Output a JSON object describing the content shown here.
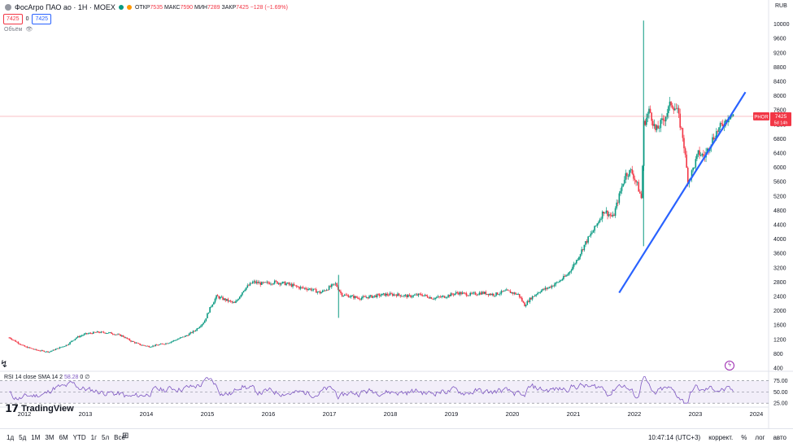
{
  "header": {
    "symbol": "ФосАгро ПАО ао · 1Н · MOEX",
    "open_label": "ОТКР",
    "open": "7535",
    "high_label": "МАКС",
    "high": "7590",
    "low_label": "МИН",
    "low": "7289",
    "close_label": "ЗАКР",
    "close": "7425",
    "change": "−128 (−1.69%)",
    "bid": "7425",
    "spread": "0",
    "ask": "7425",
    "volume_label": "Объём"
  },
  "price_tag": {
    "ticker": "PHOR",
    "price": "7425",
    "countdown": "5d 14h"
  },
  "rsi_header": {
    "label": "RSI 14 close SMA 14 2",
    "value": "58.28",
    "value2": "0 ∅"
  },
  "brand": "TradingView",
  "timeframes": [
    "1д",
    "5д",
    "1М",
    "3М",
    "6М",
    "YTD",
    "1г",
    "5л",
    "Все"
  ],
  "bottom_right": {
    "time": "10:47:14 (UTC+3)",
    "adj": "коррект.",
    "pct": "%",
    "log": "лог",
    "auto": "авто"
  },
  "colors": {
    "up": "#089981",
    "down": "#f23645",
    "trend": "#2962ff",
    "rsi": "#7e57c2",
    "last": "#f23645"
  },
  "chart_data": {
    "type": "candlestick",
    "currency": "RUB",
    "y_ticks": [
      400,
      800,
      1200,
      1600,
      2000,
      2400,
      2800,
      3200,
      3600,
      4000,
      4400,
      4800,
      5200,
      5600,
      6000,
      6400,
      6800,
      7200,
      7600,
      8000,
      8400,
      8800,
      9200,
      9600,
      10000
    ],
    "ylim": [
      400,
      10400
    ],
    "x_ticks": [
      "2012",
      "2013",
      "2014",
      "2015",
      "2016",
      "2017",
      "2018",
      "2019",
      "2020",
      "2021",
      "2022",
      "2023",
      "2024"
    ],
    "xlim": [
      2011.6,
      2024.2
    ],
    "price_path": [
      [
        2011.75,
        1250
      ],
      [
        2011.9,
        1100
      ],
      [
        2012.0,
        1000
      ],
      [
        2012.2,
        900
      ],
      [
        2012.4,
        850
      ],
      [
        2012.55,
        950
      ],
      [
        2012.7,
        1050
      ],
      [
        2012.85,
        1250
      ],
      [
        2013.0,
        1350
      ],
      [
        2013.2,
        1400
      ],
      [
        2013.4,
        1380
      ],
      [
        2013.6,
        1300
      ],
      [
        2013.75,
        1150
      ],
      [
        2013.9,
        1050
      ],
      [
        2014.05,
        1000
      ],
      [
        2014.2,
        1050
      ],
      [
        2014.35,
        1100
      ],
      [
        2014.5,
        1200
      ],
      [
        2014.65,
        1300
      ],
      [
        2014.8,
        1450
      ],
      [
        2014.95,
        1700
      ],
      [
        2015.05,
        2100
      ],
      [
        2015.15,
        2400
      ],
      [
        2015.3,
        2300
      ],
      [
        2015.45,
        2200
      ],
      [
        2015.6,
        2600
      ],
      [
        2015.75,
        2800
      ],
      [
        2015.9,
        2750
      ],
      [
        2016.1,
        2800
      ],
      [
        2016.3,
        2750
      ],
      [
        2016.5,
        2650
      ],
      [
        2016.7,
        2600
      ],
      [
        2016.85,
        2500
      ],
      [
        2017.0,
        2650
      ],
      [
        2017.1,
        2750
      ],
      [
        2017.2,
        2450
      ],
      [
        2017.35,
        2400
      ],
      [
        2017.5,
        2350
      ],
      [
        2017.7,
        2400
      ],
      [
        2017.9,
        2450
      ],
      [
        2018.1,
        2450
      ],
      [
        2018.3,
        2400
      ],
      [
        2018.5,
        2450
      ],
      [
        2018.7,
        2350
      ],
      [
        2018.9,
        2400
      ],
      [
        2019.1,
        2500
      ],
      [
        2019.3,
        2450
      ],
      [
        2019.5,
        2500
      ],
      [
        2019.7,
        2450
      ],
      [
        2019.9,
        2550
      ],
      [
        2020.1,
        2450
      ],
      [
        2020.2,
        2150
      ],
      [
        2020.3,
        2350
      ],
      [
        2020.45,
        2550
      ],
      [
        2020.6,
        2650
      ],
      [
        2020.75,
        2800
      ],
      [
        2020.9,
        3000
      ],
      [
        2021.05,
        3400
      ],
      [
        2021.2,
        3900
      ],
      [
        2021.35,
        4300
      ],
      [
        2021.5,
        4800
      ],
      [
        2021.65,
        4600
      ],
      [
        2021.75,
        5200
      ],
      [
        2021.85,
        5800
      ],
      [
        2021.95,
        5900
      ],
      [
        2022.05,
        5500
      ],
      [
        2022.12,
        5100
      ],
      [
        2022.15,
        7200
      ],
      [
        2022.25,
        7600
      ],
      [
        2022.35,
        7000
      ],
      [
        2022.5,
        7400
      ],
      [
        2022.6,
        7800
      ],
      [
        2022.7,
        7600
      ],
      [
        2022.8,
        6800
      ],
      [
        2022.88,
        5600
      ],
      [
        2022.95,
        5900
      ],
      [
        2023.05,
        6400
      ],
      [
        2023.15,
        6300
      ],
      [
        2023.25,
        6700
      ],
      [
        2023.35,
        7000
      ],
      [
        2023.45,
        7200
      ],
      [
        2023.55,
        7450
      ],
      [
        2023.62,
        7425
      ]
    ],
    "spikes": [
      {
        "x": 2017.15,
        "high": 3000,
        "low": 1800
      },
      {
        "x": 2022.15,
        "high": 10100,
        "low": 3800
      }
    ],
    "last_price": 7425,
    "trendline": [
      [
        2021.75,
        2500
      ],
      [
        2023.82,
        8100
      ]
    ],
    "rsi": {
      "levels": [
        25,
        50,
        75
      ],
      "ticks": [
        "25.00",
        "50.00",
        "75.00"
      ],
      "value": 58.28
    }
  }
}
